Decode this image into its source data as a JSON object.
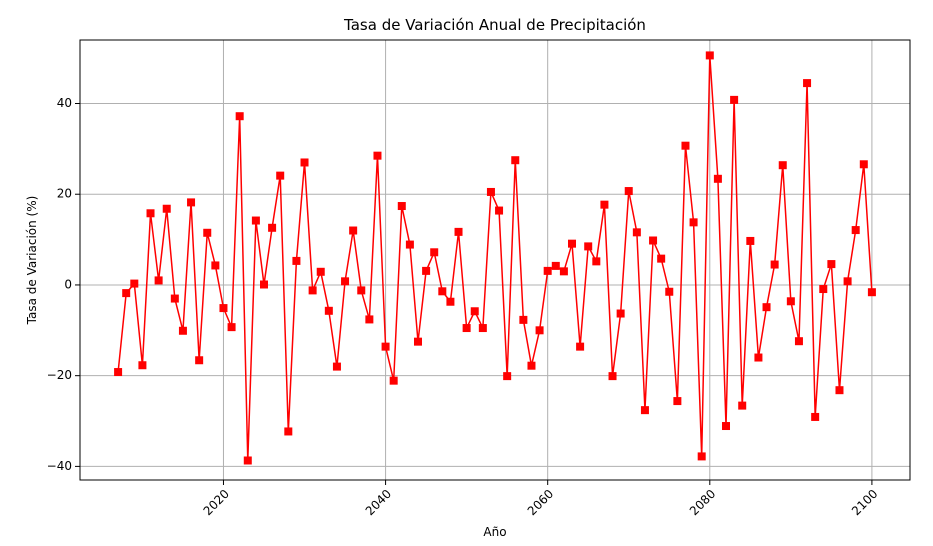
{
  "chart_data": {
    "type": "line",
    "title": "Tasa de Variación Anual de Precipitación",
    "xlabel": "Año",
    "ylabel": "Tasa de Variación (%)",
    "xlim": [
      2002.3,
      2104.7
    ],
    "ylim": [
      -43,
      54
    ],
    "xticks": [
      2020,
      2040,
      2060,
      2080,
      2100
    ],
    "yticks": [
      -40,
      -20,
      0,
      20,
      40
    ],
    "grid": true,
    "series": [
      {
        "color": "#ff0000",
        "marker": "square",
        "x": [
          2007,
          2008,
          2009,
          2010,
          2011,
          2012,
          2013,
          2014,
          2015,
          2016,
          2017,
          2018,
          2019,
          2020,
          2021,
          2022,
          2023,
          2024,
          2025,
          2026,
          2027,
          2028,
          2029,
          2030,
          2031,
          2032,
          2033,
          2034,
          2035,
          2036,
          2037,
          2038,
          2039,
          2040,
          2041,
          2042,
          2043,
          2044,
          2045,
          2046,
          2047,
          2048,
          2049,
          2050,
          2051,
          2052,
          2053,
          2054,
          2055,
          2056,
          2057,
          2058,
          2059,
          2060,
          2061,
          2062,
          2063,
          2064,
          2065,
          2066,
          2067,
          2068,
          2069,
          2070,
          2071,
          2072,
          2073,
          2074,
          2075,
          2076,
          2077,
          2078,
          2079,
          2080,
          2081,
          2082,
          2083,
          2084,
          2085,
          2086,
          2087,
          2088,
          2089,
          2090,
          2091,
          2092,
          2093,
          2094,
          2095,
          2096,
          2097,
          2098,
          2099,
          2100
        ],
        "values": [
          -19.2,
          -1.8,
          0.3,
          -17.7,
          15.8,
          1.0,
          16.8,
          -3.0,
          -10.1,
          18.2,
          -16.6,
          11.5,
          4.3,
          -5.1,
          -9.3,
          37.2,
          -38.7,
          14.2,
          0.1,
          12.6,
          24.1,
          -32.3,
          5.3,
          27.0,
          -1.2,
          2.9,
          -5.7,
          -18.0,
          0.8,
          12.0,
          -1.2,
          -7.6,
          28.5,
          -13.6,
          -21.1,
          17.4,
          8.9,
          -12.5,
          3.1,
          7.2,
          -1.4,
          -3.7,
          11.7,
          -9.5,
          -5.8,
          -9.5,
          20.5,
          16.4,
          -20.1,
          27.5,
          -7.7,
          -17.8,
          -10.0,
          3.1,
          4.2,
          3.0,
          9.1,
          -13.6,
          8.5,
          5.2,
          17.7,
          -20.1,
          -6.3,
          20.7,
          11.6,
          -27.6,
          9.8,
          5.8,
          -1.5,
          -25.6,
          30.7,
          13.8,
          -37.8,
          50.6,
          23.4,
          -31.1,
          40.8,
          -26.6,
          9.7,
          -16.0,
          -4.9,
          4.5,
          26.4,
          -3.6,
          -12.4,
          44.5,
          -29.1,
          -0.9,
          4.6,
          -23.2,
          0.8,
          12.1,
          26.6,
          -1.6
        ]
      }
    ]
  }
}
